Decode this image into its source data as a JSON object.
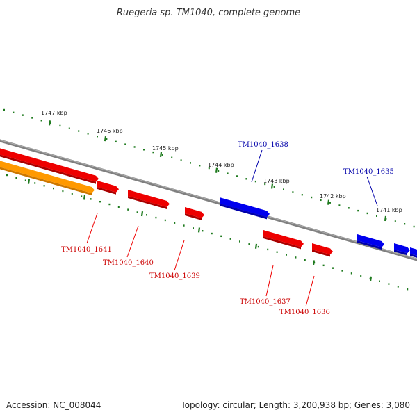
{
  "title": "Ruegeria sp. TM1040, complete genome",
  "footer": {
    "accession": "Accession: NC_008044",
    "topology": "Topology: circular; Length: 3,200,938 bp; Genes: 3,080"
  },
  "colors": {
    "backbone": "#808080",
    "tick": "#1e7a1e",
    "forward_gene": "#0000ee",
    "reverse_gene": "#ee0000",
    "orange_gene": "#ff9900",
    "forward_label": "#0000aa",
    "reverse_label": "#cc0000"
  },
  "scale_labels": [
    "1747 kbp",
    "1746 kbp",
    "1745 kbp",
    "1744 kbp",
    "1743 kbp",
    "1742 kbp",
    "1741 kbp"
  ],
  "genes": [
    {
      "id": "TM1040_1641",
      "strand": "reverse",
      "label": "TM1040_1641"
    },
    {
      "id": "TM1040_1640",
      "strand": "reverse",
      "label": "TM1040_1640"
    },
    {
      "id": "TM1040_1639",
      "strand": "reverse",
      "label": "TM1040_1639"
    },
    {
      "id": "TM1040_1638",
      "strand": "forward",
      "label": "TM1040_1638"
    },
    {
      "id": "TM1040_1637",
      "strand": "reverse",
      "label": "TM1040_1637"
    },
    {
      "id": "TM1040_1636",
      "strand": "reverse",
      "label": "TM1040_1636"
    },
    {
      "id": "TM1040_1635",
      "strand": "forward",
      "label": "TM1040_1635"
    }
  ]
}
